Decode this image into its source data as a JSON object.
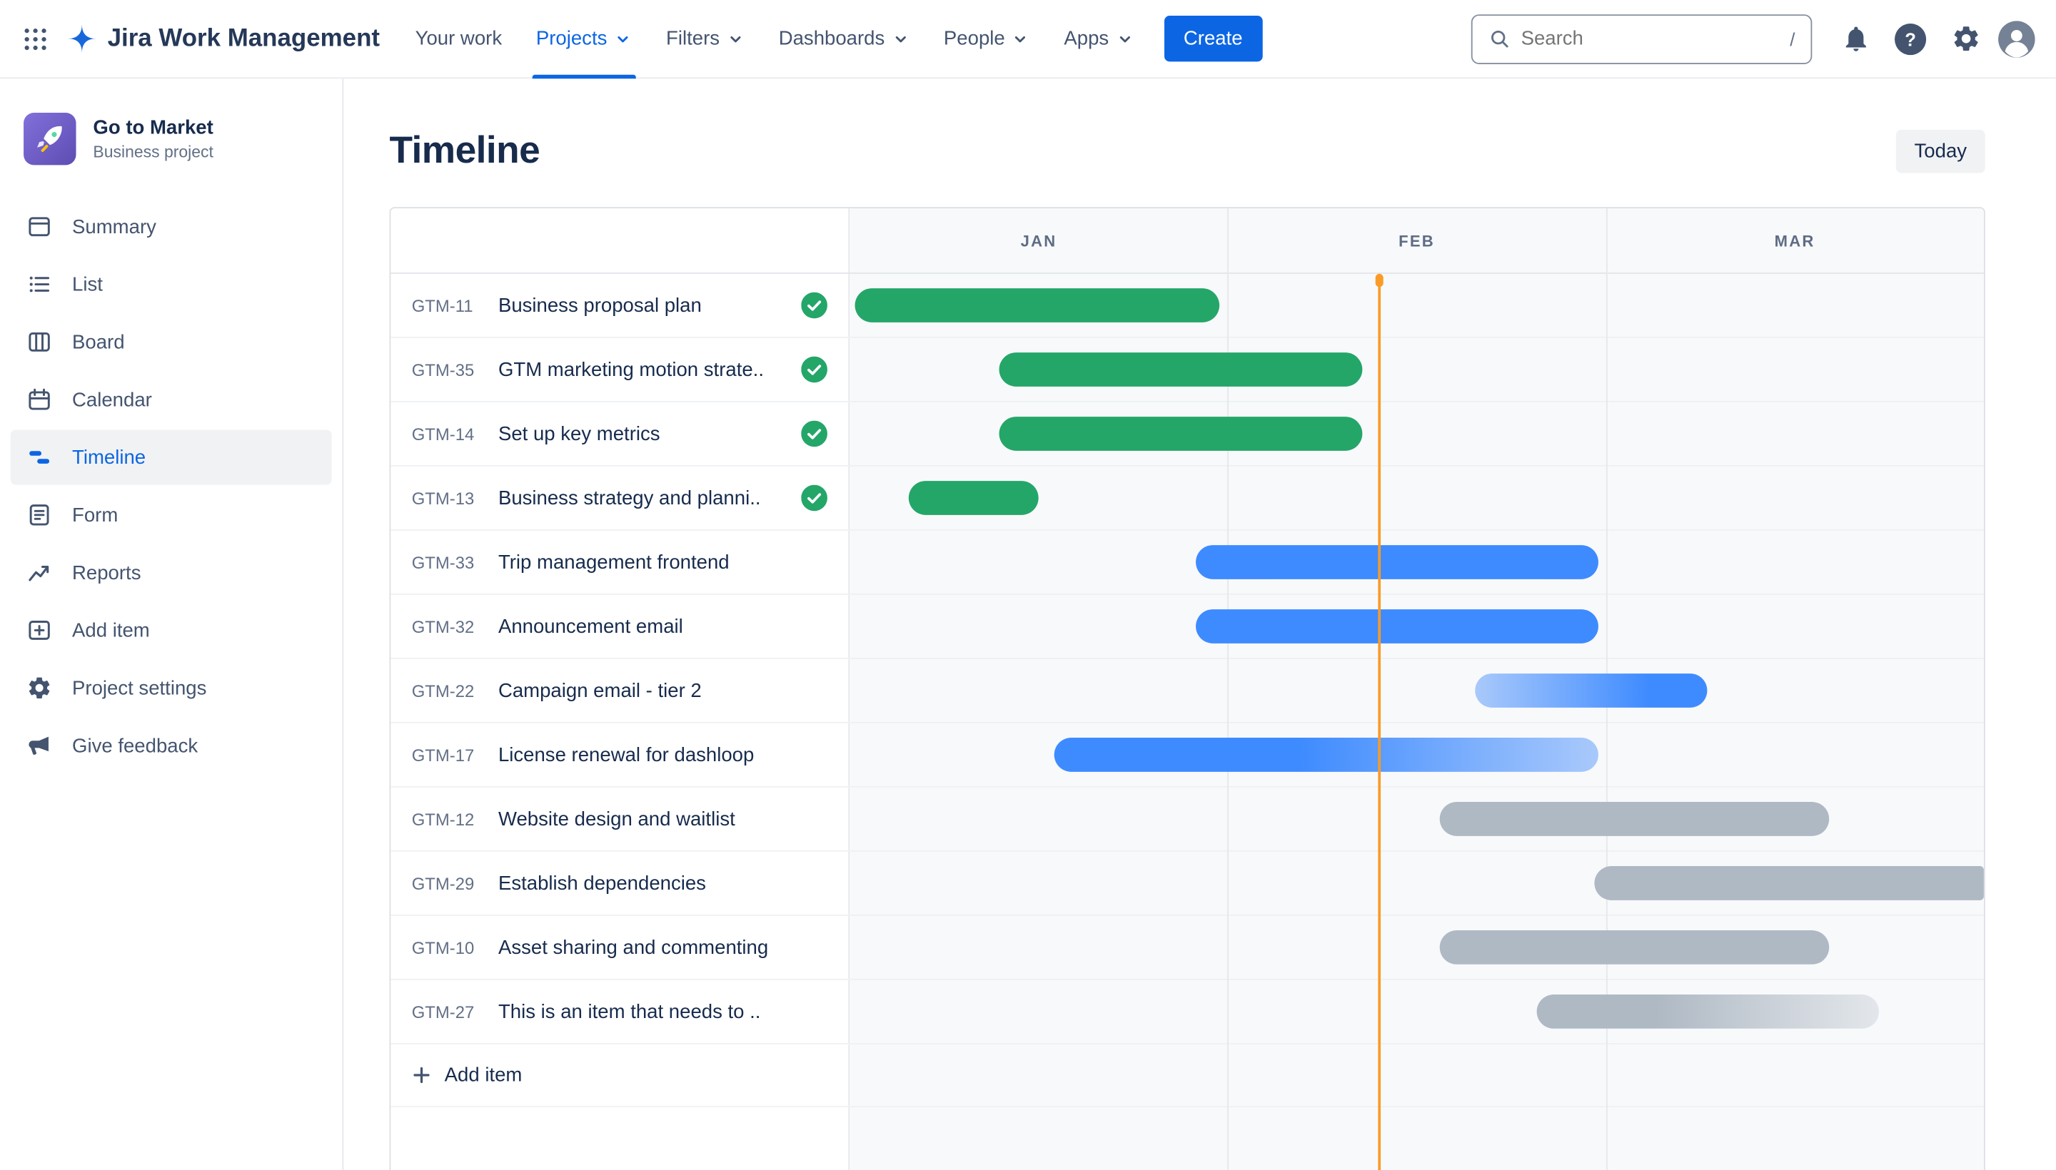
{
  "colors": {
    "accent": "#0C66E4",
    "green": "#24A669",
    "blue": "#3E8BFF",
    "blue_light": "#A9C9FB",
    "gray": "#AFB9C4",
    "gray_light": "#E3E7EB",
    "today_line": "#FB9B27"
  },
  "navbar": {
    "brand": "Jira Work Management",
    "items": [
      {
        "label": "Your work",
        "dropdown": false,
        "active": false
      },
      {
        "label": "Projects",
        "dropdown": true,
        "active": true
      },
      {
        "label": "Filters",
        "dropdown": true,
        "active": false
      },
      {
        "label": "Dashboards",
        "dropdown": true,
        "active": false
      },
      {
        "label": "People",
        "dropdown": true,
        "active": false
      },
      {
        "label": "Apps",
        "dropdown": true,
        "active": false
      }
    ],
    "create_label": "Create",
    "search": {
      "placeholder": "Search",
      "shortcut": "/"
    }
  },
  "sidebar": {
    "project": {
      "name": "Go to Market",
      "type": "Business project"
    },
    "items": [
      {
        "label": "Summary",
        "icon": "summary-icon",
        "active": false
      },
      {
        "label": "List",
        "icon": "list-icon",
        "active": false
      },
      {
        "label": "Board",
        "icon": "board-icon",
        "active": false
      },
      {
        "label": "Calendar",
        "icon": "calendar-icon",
        "active": false
      },
      {
        "label": "Timeline",
        "icon": "timeline-icon",
        "active": true
      },
      {
        "label": "Form",
        "icon": "form-icon",
        "active": false
      },
      {
        "label": "Reports",
        "icon": "reports-icon",
        "active": false
      },
      {
        "label": "Add item",
        "icon": "add-item-icon",
        "active": false
      },
      {
        "label": "Project settings",
        "icon": "settings-icon",
        "active": false
      },
      {
        "label": "Give feedback",
        "icon": "feedback-icon",
        "active": false
      }
    ]
  },
  "page": {
    "title": "Timeline",
    "today_button": "Today",
    "add_item_label": "Add item"
  },
  "timeline": {
    "months": [
      "JAN",
      "FEB",
      "MAR"
    ],
    "today_pct": 46.7,
    "rows": [
      {
        "key": "GTM-11",
        "summary": "Business proposal plan",
        "done": true,
        "bar": {
          "start": 0.5,
          "end": 32.6,
          "style": "green"
        }
      },
      {
        "key": "GTM-35",
        "summary": "GTM marketing motion strate..",
        "done": true,
        "bar": {
          "start": 13.2,
          "end": 45.2,
          "style": "green"
        }
      },
      {
        "key": "GTM-14",
        "summary": "Set up key metrics",
        "done": true,
        "bar": {
          "start": 13.2,
          "end": 45.2,
          "style": "green"
        }
      },
      {
        "key": "GTM-13",
        "summary": "Business strategy and planni..",
        "done": true,
        "bar": {
          "start": 5.2,
          "end": 16.6,
          "style": "green"
        }
      },
      {
        "key": "GTM-33",
        "summary": "Trip management frontend",
        "done": false,
        "bar": {
          "start": 30.5,
          "end": 66.0,
          "style": "blue"
        }
      },
      {
        "key": "GTM-32",
        "summary": "Announcement email",
        "done": false,
        "bar": {
          "start": 30.5,
          "end": 66.0,
          "style": "blue"
        }
      },
      {
        "key": "GTM-22",
        "summary": "Campaign email - tier 2",
        "done": false,
        "bar": {
          "start": 55.1,
          "end": 75.6,
          "style": "blue-fade-left"
        }
      },
      {
        "key": "GTM-17",
        "summary": "License renewal for dashloop",
        "done": false,
        "bar": {
          "start": 18.0,
          "end": 66.0,
          "style": "blue-fade-right"
        }
      },
      {
        "key": "GTM-12",
        "summary": "Website design and waitlist",
        "done": false,
        "bar": {
          "start": 52.0,
          "end": 86.4,
          "style": "gray"
        }
      },
      {
        "key": "GTM-29",
        "summary": "Establish dependencies",
        "done": false,
        "bar": {
          "start": 65.7,
          "end": 100,
          "style": "gray"
        }
      },
      {
        "key": "GTM-10",
        "summary": "Asset sharing and commenting",
        "done": false,
        "bar": {
          "start": 52.0,
          "end": 86.4,
          "style": "gray"
        }
      },
      {
        "key": "GTM-27",
        "summary": "This is an item that needs to ..",
        "done": false,
        "bar": {
          "start": 60.6,
          "end": 90.7,
          "style": "gray-fade-right"
        }
      }
    ]
  }
}
